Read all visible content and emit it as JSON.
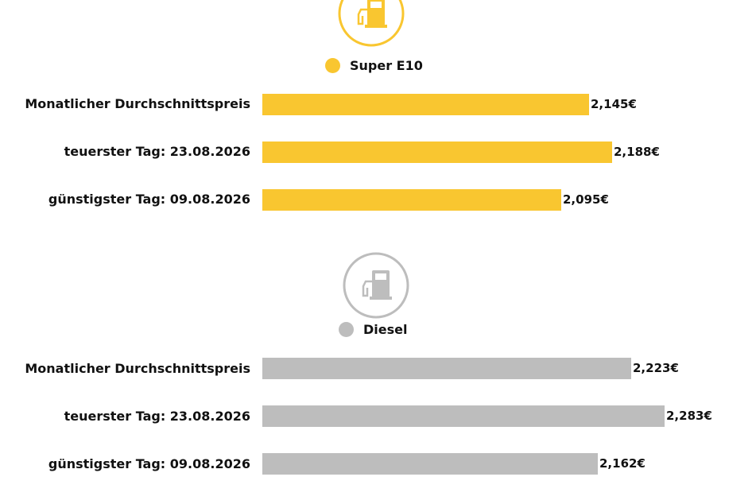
{
  "colors": {
    "super": "#f9c630",
    "diesel": "#bdbdbd",
    "super_icon": "#f9c630",
    "diesel_icon": "#bdbdbd"
  },
  "chart_data": [
    {
      "type": "bar",
      "orientation": "horizontal",
      "series_name": "Super E10",
      "categories": [
        "Monatlicher Durchschnittspreis",
        "teuerster Tag: 23.08.2026",
        "günstigster Tag: 09.08.2026"
      ],
      "values": [
        2.145,
        2.188,
        2.095
      ],
      "value_labels": [
        "2,145€",
        "2,188€",
        "2,095€"
      ],
      "color": "#f9c630",
      "icon": "fuel-pump-icon"
    },
    {
      "type": "bar",
      "orientation": "horizontal",
      "series_name": "Diesel",
      "categories": [
        "Monatlicher Durchschnittspreis",
        "teuerster Tag: 23.08.2026",
        "günstigster Tag: 09.08.2026"
      ],
      "values": [
        2.223,
        2.283,
        2.162
      ],
      "value_labels": [
        "2,223€",
        "2,283€",
        "2,162€"
      ],
      "color": "#bdbdbd",
      "icon": "fuel-pump-icon"
    }
  ]
}
